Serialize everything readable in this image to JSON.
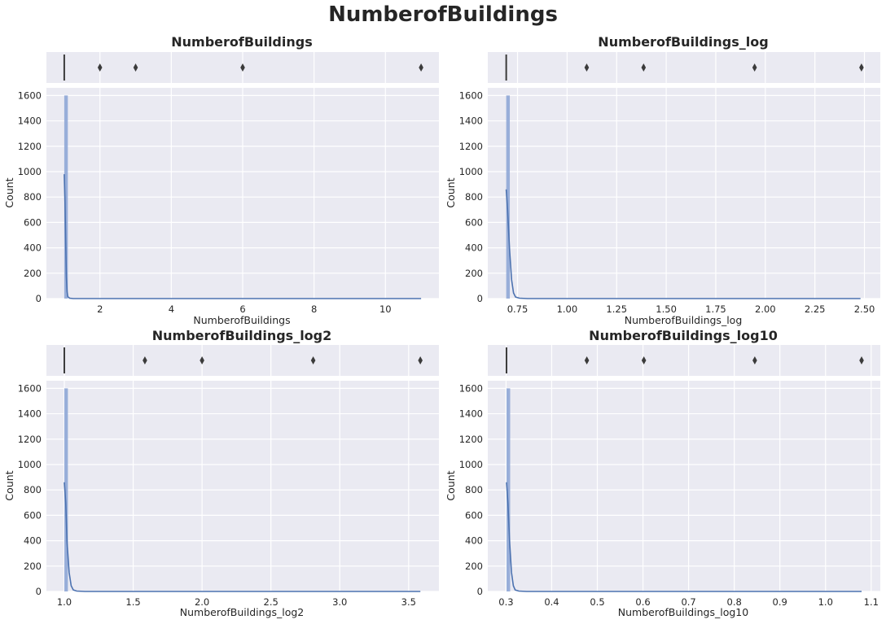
{
  "figure": {
    "title": "NumberofBuildings"
  },
  "chart_data": [
    {
      "type": "histogram",
      "title": "NumberofBuildings",
      "xlabel": "NumberofBuildings",
      "ylabel": "Count",
      "xlim": [
        0.5,
        11.5
      ],
      "ylim": [
        0,
        1660
      ],
      "xticks": [
        2,
        4,
        6,
        8,
        10
      ],
      "xtick_labels": [
        "2",
        "4",
        "6",
        "8",
        "10"
      ],
      "yticks": [
        0,
        200,
        400,
        600,
        800,
        1000,
        1200,
        1400,
        1600
      ],
      "grid": true,
      "histogram": {
        "bin_start": 1.0,
        "bin_width": 0.1,
        "counts": [
          1600
        ]
      },
      "kde": {
        "x": [
          1.0,
          1.02,
          1.04,
          1.06,
          1.08,
          1.1,
          1.15,
          1.25,
          11.0
        ],
        "y": [
          980,
          760,
          430,
          170,
          55,
          15,
          3,
          0,
          0
        ]
      },
      "boxplot": {
        "median": 1,
        "q1": 1,
        "q3": 1,
        "whisker_low": 1,
        "whisker_high": 1,
        "outliers": [
          2,
          3,
          6,
          11
        ]
      }
    },
    {
      "type": "histogram",
      "title": "NumberofBuildings_log",
      "xlabel": "NumberofBuildings_log",
      "ylabel": "Count",
      "xlim": [
        0.6,
        2.58
      ],
      "ylim": [
        0,
        1660
      ],
      "xticks": [
        0.75,
        1.0,
        1.25,
        1.5,
        1.75,
        2.0,
        2.25,
        2.5
      ],
      "xtick_labels": [
        "0.75",
        "1.00",
        "1.25",
        "1.50",
        "1.75",
        "2.00",
        "2.25",
        "2.50"
      ],
      "yticks": [
        0,
        200,
        400,
        600,
        800,
        1000,
        1200,
        1400,
        1600
      ],
      "grid": true,
      "histogram": {
        "bin_start": 0.693,
        "bin_width": 0.018,
        "counts": [
          1600
        ]
      },
      "kde": {
        "x": [
          0.693,
          0.7,
          0.71,
          0.72,
          0.73,
          0.74,
          0.76,
          0.8,
          2.48
        ],
        "y": [
          860,
          700,
          380,
          150,
          45,
          12,
          3,
          0,
          0
        ]
      },
      "boxplot": {
        "median": 0.693,
        "q1": 0.693,
        "q3": 0.693,
        "whisker_low": 0.693,
        "whisker_high": 0.693,
        "outliers": [
          1.099,
          1.386,
          1.946,
          2.485
        ]
      }
    },
    {
      "type": "histogram",
      "title": "NumberofBuildings_log2",
      "xlabel": "NumberofBuildings_log2",
      "ylabel": "Count",
      "xlim": [
        0.87,
        3.72
      ],
      "ylim": [
        0,
        1660
      ],
      "xticks": [
        1.0,
        1.5,
        2.0,
        2.5,
        3.0,
        3.5
      ],
      "xtick_labels": [
        "1.0",
        "1.5",
        "2.0",
        "2.5",
        "3.0",
        "3.5"
      ],
      "yticks": [
        0,
        200,
        400,
        600,
        800,
        1000,
        1200,
        1400,
        1600
      ],
      "grid": true,
      "histogram": {
        "bin_start": 1.0,
        "bin_width": 0.026,
        "counts": [
          1600
        ]
      },
      "kde": {
        "x": [
          1.0,
          1.01,
          1.02,
          1.035,
          1.05,
          1.065,
          1.09,
          1.15,
          3.585
        ],
        "y": [
          860,
          700,
          380,
          150,
          45,
          12,
          3,
          0,
          0
        ]
      },
      "boxplot": {
        "median": 1.0,
        "q1": 1.0,
        "q3": 1.0,
        "whisker_low": 1.0,
        "whisker_high": 1.0,
        "outliers": [
          1.585,
          2.0,
          2.807,
          3.585
        ]
      }
    },
    {
      "type": "histogram",
      "title": "NumberofBuildings_log10",
      "xlabel": "NumberofBuildings_log10",
      "ylabel": "Count",
      "xlim": [
        0.26,
        1.12
      ],
      "ylim": [
        0,
        1660
      ],
      "xticks": [
        0.3,
        0.4,
        0.5,
        0.6,
        0.7,
        0.8,
        0.9,
        1.0,
        1.1
      ],
      "xtick_labels": [
        "0.3",
        "0.4",
        "0.5",
        "0.6",
        "0.7",
        "0.8",
        "0.9",
        "1.0",
        "1.1"
      ],
      "yticks": [
        0,
        200,
        400,
        600,
        800,
        1000,
        1200,
        1400,
        1600
      ],
      "grid": true,
      "histogram": {
        "bin_start": 0.301,
        "bin_width": 0.008,
        "counts": [
          1600
        ]
      },
      "kde": {
        "x": [
          0.301,
          0.304,
          0.308,
          0.312,
          0.316,
          0.32,
          0.328,
          0.345,
          1.079
        ],
        "y": [
          860,
          700,
          380,
          150,
          45,
          12,
          3,
          0,
          0
        ]
      },
      "boxplot": {
        "median": 0.301,
        "q1": 0.301,
        "q3": 0.301,
        "whisker_low": 0.301,
        "whisker_high": 0.301,
        "outliers": [
          0.477,
          0.602,
          0.845,
          1.079
        ]
      }
    }
  ],
  "colors": {
    "bar": "#8fa7d6",
    "kde": "#4c72b0",
    "box_line": "#3b3b3b",
    "outlier": "#3b3b3b"
  }
}
